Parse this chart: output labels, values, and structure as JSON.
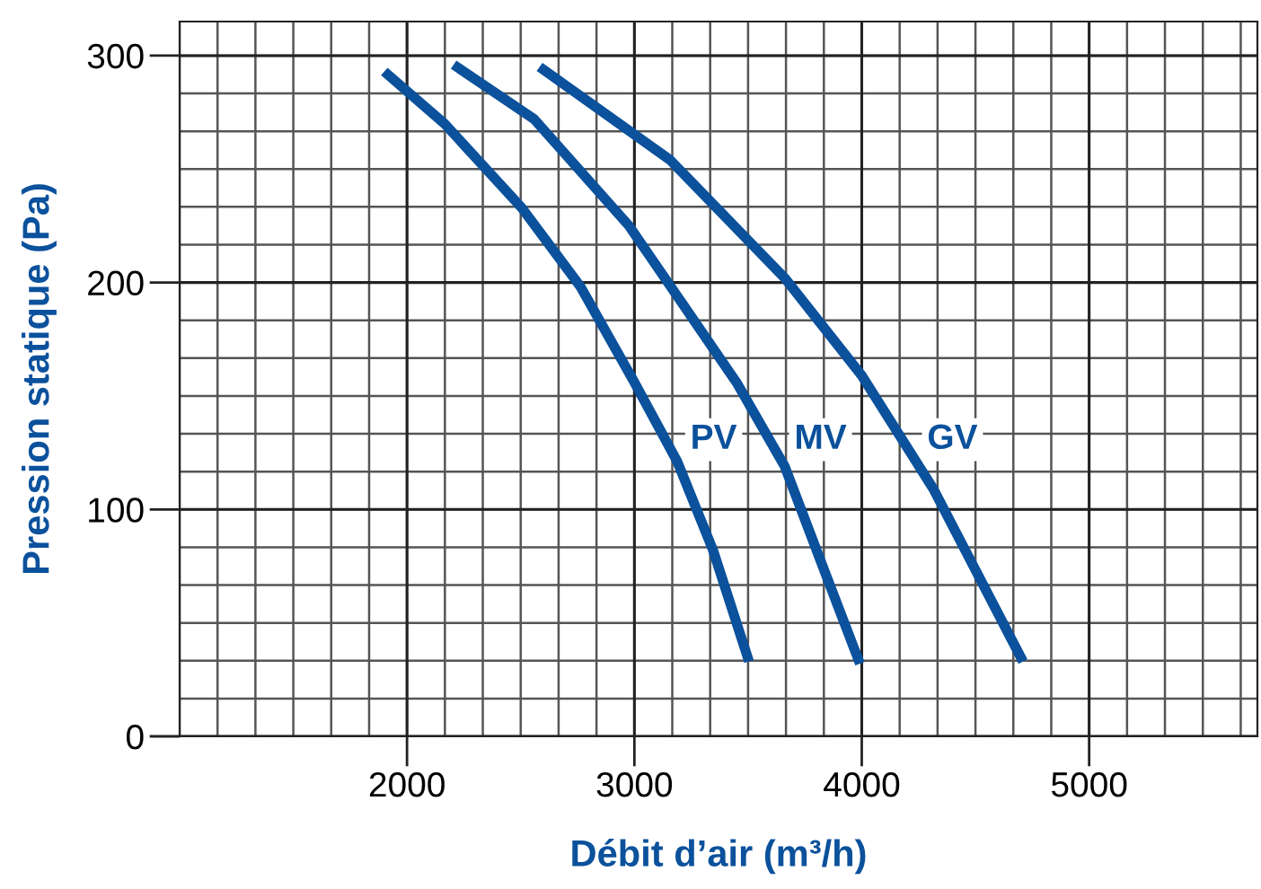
{
  "chart_data": {
    "type": "line",
    "xlabel": "Débit d’air (m³/h)",
    "ylabel": "Pression statique (Pa)",
    "xlim": [
      1000,
      5740
    ],
    "ylim": [
      0,
      315
    ],
    "xticks": [
      2000,
      3000,
      4000,
      5000
    ],
    "yticks": [
      0,
      100,
      200,
      300
    ],
    "grid": true,
    "legend": false,
    "marker": "none",
    "line_style": "solid",
    "series": [
      {
        "name": "PV",
        "color": "#0b519c",
        "x": [
          1900,
          2165,
          2504,
          2764,
          3000,
          3189,
          3346,
          3504
        ],
        "values": [
          293,
          270,
          233,
          198,
          156,
          121,
          82,
          33
        ]
      },
      {
        "name": "MV",
        "color": "#0b519c",
        "x": [
          2205,
          2559,
          2976,
          3449,
          3661,
          3843,
          3992
        ],
        "values": [
          296,
          272,
          225,
          156,
          119,
          71,
          32
        ]
      },
      {
        "name": "GV",
        "color": "#0b519c",
        "x": [
          2583,
          3157,
          3661,
          4000,
          4315,
          4709
        ],
        "values": [
          295,
          254,
          202,
          159,
          109,
          33
        ]
      }
    ]
  }
}
